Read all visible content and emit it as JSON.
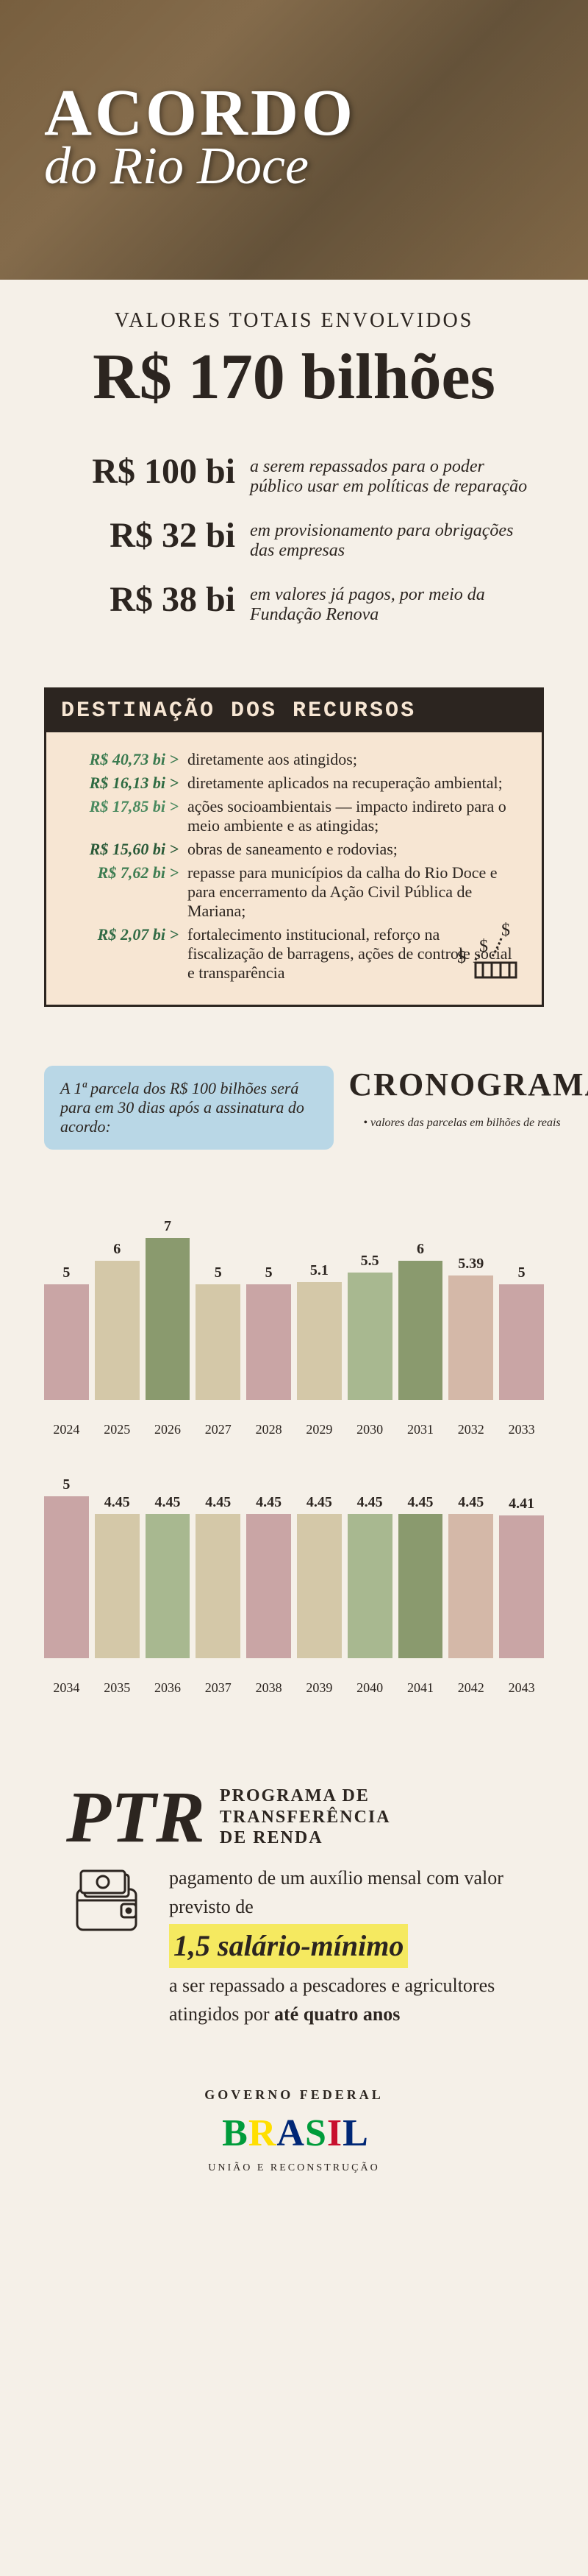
{
  "header": {
    "title": "ACORDO",
    "subtitle": "do Rio Doce"
  },
  "totals": {
    "label": "VALORES TOTAIS ENVOLVIDOS",
    "value": "R$ 170 bilhões"
  },
  "breakdown": [
    {
      "amount": "R$ 100 bi",
      "desc": "a serem repassados para o poder público usar em políticas de reparação"
    },
    {
      "amount": "R$ 32 bi",
      "desc": "em provisionamento para obrigações das empresas"
    },
    {
      "amount": "R$ 38 bi",
      "desc": "em valores já pagos, por meio da Fundação Renova"
    }
  ],
  "destinacao": {
    "title": "DESTINAÇÃO DOS RECURSOS",
    "items": [
      {
        "amount": "R$ 40,73 bi >",
        "desc": "diretamente aos atingidos;",
        "color": "#3a7a4f"
      },
      {
        "amount": "R$ 16,13 bi >",
        "desc": "diretamente aplicados na recuperação ambiental;",
        "color": "#2e6b42"
      },
      {
        "amount": "R$ 17,85 bi >",
        "desc": "ações socioambientais — impacto indireto para o meio ambiente e as atingidas;",
        "color": "#4a8a5f"
      },
      {
        "amount": "R$ 15,60 bi >",
        "desc": "obras de saneamento e rodovias;",
        "color": "#2a5a38"
      },
      {
        "amount": "R$ 7,62 bi >",
        "desc": "repasse para municípios da calha do Rio Doce e para encerramento da Ação Civil Pública de Mariana;",
        "color": "#3e7d52"
      },
      {
        "amount": "R$ 2,07 bi >",
        "desc": "fortalecimento institucional, reforço na fiscalização de barragens, ações de controle social e transparência",
        "color": "#326b46"
      }
    ]
  },
  "cronograma": {
    "title": "CRONOGRAMA",
    "note": "A 1ª parcela dos R$ 100 bilhões será para em 30 dias após a assinatura do acordo:",
    "legend": "• valores das parcelas em bilhões de reais",
    "chart1": {
      "max_value": 7,
      "bars": [
        {
          "label": "5",
          "value": 5,
          "year": "2024",
          "color": "#c9a5a5"
        },
        {
          "label": "6",
          "value": 6,
          "year": "2025",
          "color": "#d4c8a8"
        },
        {
          "label": "7",
          "value": 7,
          "year": "2026",
          "color": "#8a9a6e"
        },
        {
          "label": "5",
          "value": 5,
          "year": "2027",
          "color": "#d4c8a8"
        },
        {
          "label": "5",
          "value": 5,
          "year": "2028",
          "color": "#c9a5a5"
        },
        {
          "label": "5.1",
          "value": 5.1,
          "year": "2029",
          "color": "#d4c8a8"
        },
        {
          "label": "5.5",
          "value": 5.5,
          "year": "2030",
          "color": "#a8b890"
        },
        {
          "label": "6",
          "value": 6,
          "year": "2031",
          "color": "#8a9a6e"
        },
        {
          "label": "5.39",
          "value": 5.39,
          "year": "2032",
          "color": "#d4b8a8"
        },
        {
          "label": "5",
          "value": 5,
          "year": "2033",
          "color": "#c9a5a5"
        }
      ]
    },
    "chart2": {
      "max_value": 5,
      "bars": [
        {
          "label": "5",
          "value": 5,
          "year": "2034",
          "color": "#c9a5a5"
        },
        {
          "label": "4.45",
          "value": 4.45,
          "year": "2035",
          "color": "#d4c8a8"
        },
        {
          "label": "4.45",
          "value": 4.45,
          "year": "2036",
          "color": "#a8b890"
        },
        {
          "label": "4.45",
          "value": 4.45,
          "year": "2037",
          "color": "#d4c8a8"
        },
        {
          "label": "4.45",
          "value": 4.45,
          "year": "2038",
          "color": "#c9a5a5"
        },
        {
          "label": "4.45",
          "value": 4.45,
          "year": "2039",
          "color": "#d4c8a8"
        },
        {
          "label": "4.45",
          "value": 4.45,
          "year": "2040",
          "color": "#a8b890"
        },
        {
          "label": "4.45",
          "value": 4.45,
          "year": "2041",
          "color": "#8a9a6e"
        },
        {
          "label": "4.45",
          "value": 4.45,
          "year": "2042",
          "color": "#d4b8a8"
        },
        {
          "label": "4.41",
          "value": 4.41,
          "year": "2043",
          "color": "#c9a5a5"
        }
      ]
    }
  },
  "ptr": {
    "abbr": "PTR",
    "expanded_l1": "PROGRAMA DE",
    "expanded_l2": "TRANSFERÊNCIA",
    "expanded_l3": "DE RENDA",
    "text1": "pagamento de um auxílio mensal com valor previsto de",
    "highlight": "1,5 salário-mínimo",
    "text2": "a ser repassado a pescadores e agricultores atingidos por ",
    "text3": "até quatro anos"
  },
  "footer": {
    "gov": "GOVERNO FEDERAL",
    "tagline": "UNIÃO E RECONSTRUÇÃO"
  }
}
